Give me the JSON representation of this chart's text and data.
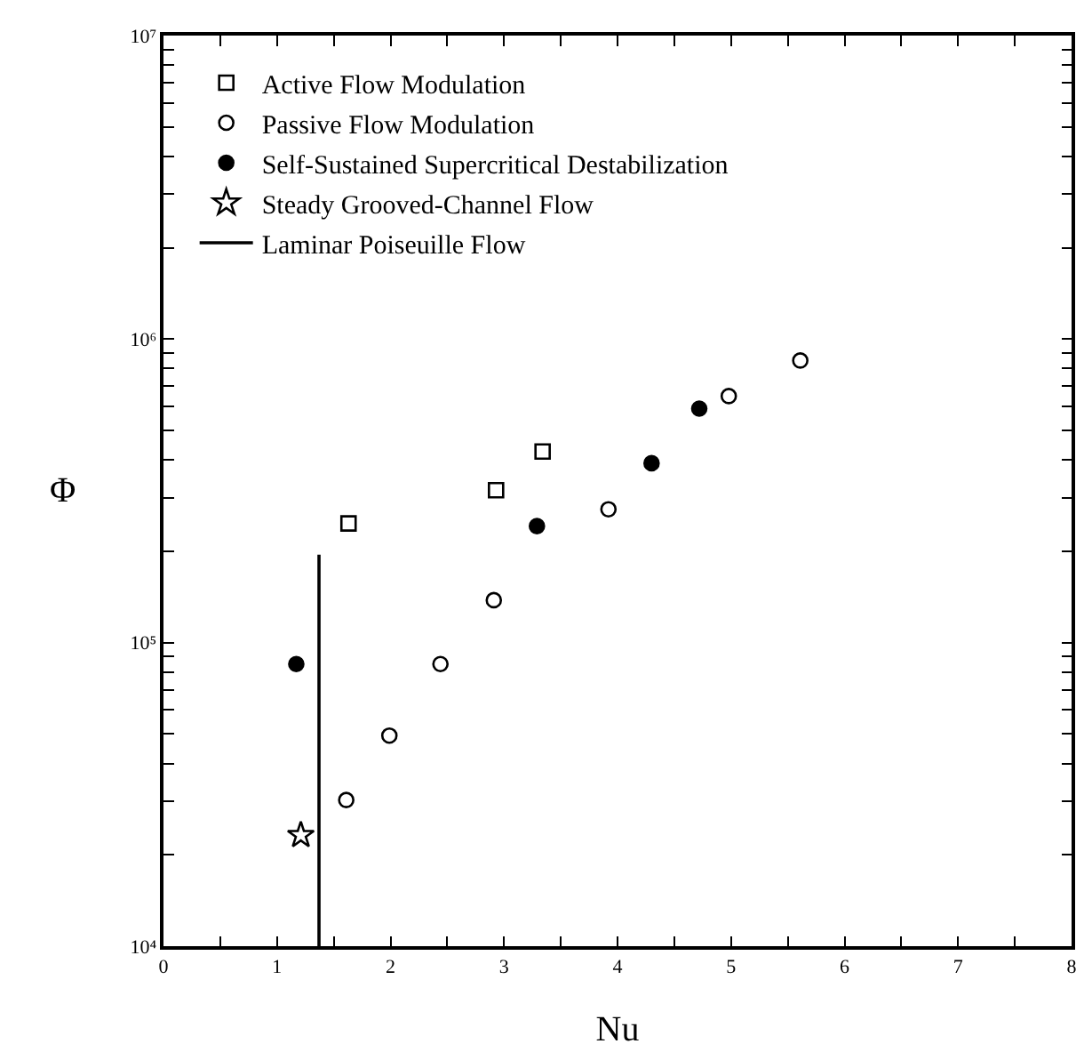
{
  "chart_data": {
    "type": "scatter",
    "xlabel": "Nu",
    "ylabel": "Φ",
    "log": "y",
    "xlim": [
      0,
      8
    ],
    "ylim": [
      10000,
      10000000
    ],
    "xticks": [
      0,
      {
        "value": 0.5,
        "label": null
      },
      1,
      {
        "value": 1.5,
        "label": null
      },
      2,
      {
        "value": 2.5,
        "label": null
      },
      3,
      {
        "value": 3.5,
        "label": null
      },
      4,
      {
        "value": 4.5,
        "label": null
      },
      5,
      {
        "value": 5.5,
        "label": null
      },
      6,
      {
        "value": 6.5,
        "label": null
      },
      7,
      {
        "value": 7.5,
        "label": null
      },
      8
    ],
    "yticks": [
      {
        "value": 10000,
        "label": "10⁴"
      },
      {
        "value": 20000,
        "label": null
      },
      {
        "value": 30000,
        "label": null
      },
      {
        "value": 40000,
        "label": null
      },
      {
        "value": 50000,
        "label": null
      },
      {
        "value": 60000,
        "label": null
      },
      {
        "value": 70000,
        "label": null
      },
      {
        "value": 80000,
        "label": null
      },
      {
        "value": 90000,
        "label": null
      },
      {
        "value": 100000,
        "label": "10⁵"
      },
      {
        "value": 200000,
        "label": null
      },
      {
        "value": 300000,
        "label": null
      },
      {
        "value": 400000,
        "label": null
      },
      {
        "value": 500000,
        "label": null
      },
      {
        "value": 600000,
        "label": null
      },
      {
        "value": 700000,
        "label": null
      },
      {
        "value": 800000,
        "label": null
      },
      {
        "value": 900000,
        "label": null
      },
      {
        "value": 1000000,
        "label": "10⁶"
      },
      {
        "value": 2000000,
        "label": null
      },
      {
        "value": 3000000,
        "label": null
      },
      {
        "value": 4000000,
        "label": null
      },
      {
        "value": 5000000,
        "label": null
      },
      {
        "value": 6000000,
        "label": null
      },
      {
        "value": 7000000,
        "label": null
      },
      {
        "value": 8000000,
        "label": null
      },
      {
        "value": 9000000,
        "label": null
      },
      {
        "value": 10000000,
        "label": "10⁷"
      }
    ],
    "legend": "top left",
    "series": [
      {
        "name": "Active Flow Modulation",
        "color": "#000000",
        "marker": "square-open",
        "x": [
          1.63,
          2.93,
          3.34
        ],
        "values": [
          247000,
          318000,
          426000
        ]
      },
      {
        "name": "Passive Flow Modulation",
        "color": "#000000",
        "marker": "circle-open",
        "x": [
          1.61,
          1.99,
          2.44,
          2.91,
          3.92,
          4.98,
          5.61
        ],
        "values": [
          30300,
          49400,
          85000,
          138000,
          275000,
          649000,
          850000
        ]
      },
      {
        "name": "Self-Sustained Supercritical Destabilization",
        "color": "#000000",
        "marker": "circle",
        "x": [
          1.17,
          3.29,
          4.3,
          4.72
        ],
        "values": [
          85000,
          242000,
          390000,
          590000
        ]
      },
      {
        "name": "Steady Grooved-Channel Flow",
        "color": "#000000",
        "marker": "star-open",
        "x": [
          1.21
        ],
        "values": [
          23200
        ]
      },
      {
        "name": "Laminar Poiseuille Flow",
        "color": "#000000",
        "type": "line",
        "marker": "none",
        "line_style": "solid",
        "x": [
          1.37,
          1.37
        ],
        "values": [
          10000,
          195000
        ]
      }
    ]
  }
}
